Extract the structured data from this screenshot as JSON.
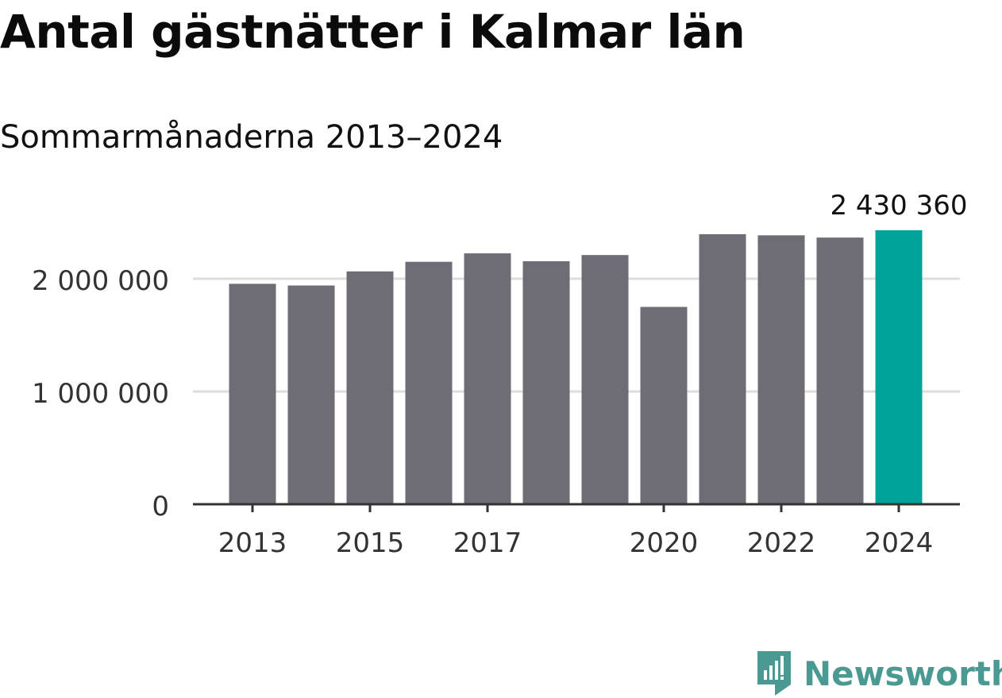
{
  "header": {
    "title": "Antal gästnätter i Kalmar län",
    "subtitle": "Sommarmånaderna 2013–2024"
  },
  "brand": {
    "name": "Newsworthy",
    "color": "#4a9a93",
    "icon": "newsworthy-logo-icon"
  },
  "colors": {
    "bar": "#6e6d75",
    "highlight": "#00a39a",
    "grid": "#dddddd",
    "axis": "#333333"
  },
  "chart_data": {
    "type": "bar",
    "categories": [
      "2013",
      "2014",
      "2015",
      "2016",
      "2017",
      "2018",
      "2019",
      "2020",
      "2021",
      "2022",
      "2023",
      "2024"
    ],
    "values": [
      1955000,
      1940000,
      2065000,
      2150000,
      2225000,
      2155000,
      2210000,
      1750000,
      2395000,
      2385000,
      2365000,
      2430360
    ],
    "highlight_index": 11,
    "highlight_label": "2 430 360",
    "x_tick_labels": [
      "2013",
      "2015",
      "2017",
      "2020",
      "2022",
      "2024"
    ],
    "y_ticks": [
      {
        "value": 0,
        "label": "0"
      },
      {
        "value": 1000000,
        "label": "1 000 000"
      },
      {
        "value": 2000000,
        "label": "2 000 000"
      }
    ],
    "ylim": [
      0,
      2500000
    ],
    "grid": true
  }
}
